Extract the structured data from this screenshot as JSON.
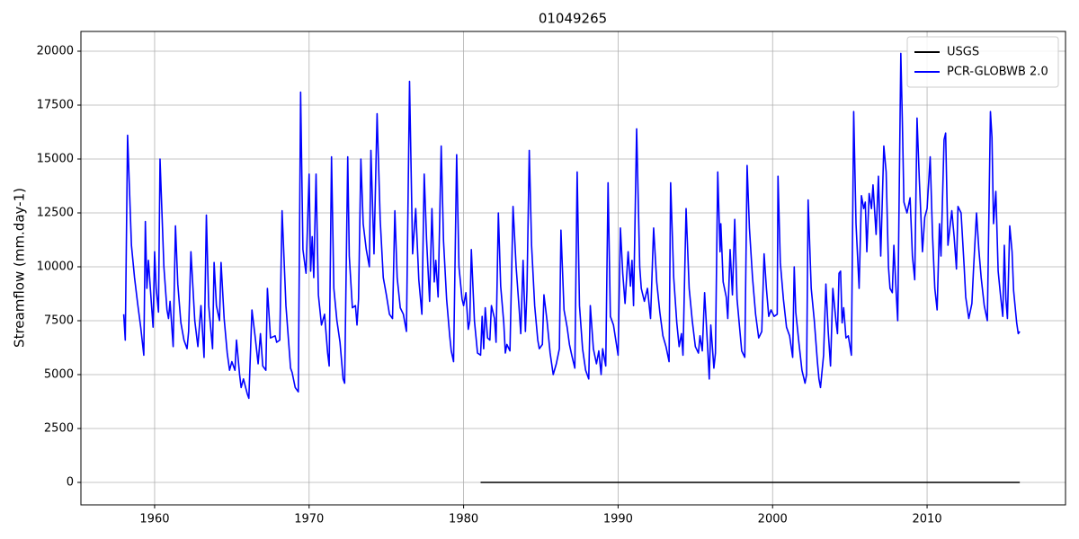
{
  "chart_data": {
    "type": "line",
    "title": "01049265",
    "y_label": "Streamflow (mm.day-1)",
    "xlim": [
      1955.23,
      2018.96
    ],
    "ylim": [
      -1042,
      20917
    ],
    "xticks": [
      1960,
      1970,
      1980,
      1990,
      2000,
      2010
    ],
    "yticks": [
      0,
      2500,
      5000,
      7500,
      10000,
      12500,
      15000,
      17500,
      20000
    ],
    "grid": true,
    "legend": "upper-right",
    "series": [
      {
        "name": "USGS",
        "color": "#000000",
        "x": [
          1981.1,
          2016.0
        ],
        "values": [
          0,
          0
        ]
      },
      {
        "name": "PCR-GLOBWB 2.0",
        "color": "#0000ff",
        "x": [
          1958.0,
          1958.1,
          1958.25,
          1958.5,
          1958.7,
          1958.9,
          1959.1,
          1959.3,
          1959.4,
          1959.5,
          1959.6,
          1959.8,
          1959.9,
          1960.0,
          1960.1,
          1960.25,
          1960.35,
          1960.6,
          1960.8,
          1960.9,
          1961.0,
          1961.2,
          1961.35,
          1961.5,
          1961.7,
          1961.9,
          1962.1,
          1962.2,
          1962.35,
          1962.6,
          1962.8,
          1963.0,
          1963.2,
          1963.35,
          1963.5,
          1963.75,
          1963.85,
          1964.0,
          1964.2,
          1964.3,
          1964.5,
          1964.7,
          1964.85,
          1965.0,
          1965.2,
          1965.3,
          1965.5,
          1965.6,
          1965.75,
          1966.0,
          1966.1,
          1966.3,
          1966.5,
          1966.7,
          1966.85,
          1967.0,
          1967.2,
          1967.3,
          1967.5,
          1967.8,
          1967.9,
          1968.1,
          1968.25,
          1968.5,
          1968.8,
          1968.9,
          1969.1,
          1969.3,
          1969.45,
          1969.6,
          1969.8,
          1970.0,
          1970.1,
          1970.2,
          1970.3,
          1970.45,
          1970.6,
          1970.8,
          1971.0,
          1971.2,
          1971.3,
          1971.45,
          1971.6,
          1971.8,
          1972.0,
          1972.2,
          1972.3,
          1972.5,
          1972.6,
          1972.8,
          1973.0,
          1973.1,
          1973.2,
          1973.35,
          1973.5,
          1973.7,
          1973.9,
          1974.0,
          1974.2,
          1974.4,
          1974.6,
          1974.8,
          1975.0,
          1975.2,
          1975.4,
          1975.55,
          1975.7,
          1975.9,
          1976.1,
          1976.3,
          1976.5,
          1976.7,
          1976.9,
          1977.1,
          1977.3,
          1977.45,
          1977.6,
          1977.8,
          1977.95,
          1978.1,
          1978.2,
          1978.35,
          1978.55,
          1978.7,
          1978.9,
          1979.1,
          1979.2,
          1979.35,
          1979.55,
          1979.7,
          1979.9,
          1980.0,
          1980.15,
          1980.3,
          1980.4,
          1980.5,
          1980.7,
          1980.9,
          1981.1,
          1981.2,
          1981.3,
          1981.4,
          1981.55,
          1981.7,
          1981.8,
          1982.0,
          1982.1,
          1982.25,
          1982.4,
          1982.6,
          1982.7,
          1982.8,
          1983.0,
          1983.2,
          1983.4,
          1983.6,
          1983.7,
          1983.85,
          1984.0,
          1984.1,
          1984.25,
          1984.4,
          1984.6,
          1984.8,
          1984.9,
          1985.1,
          1985.2,
          1985.4,
          1985.6,
          1985.8,
          1986.0,
          1986.2,
          1986.3,
          1986.5,
          1986.7,
          1986.85,
          1987.0,
          1987.2,
          1987.35,
          1987.5,
          1987.7,
          1987.9,
          1988.1,
          1988.2,
          1988.4,
          1988.6,
          1988.75,
          1988.9,
          1989.0,
          1989.2,
          1989.35,
          1989.5,
          1989.7,
          1989.85,
          1990.0,
          1990.15,
          1990.3,
          1990.45,
          1990.65,
          1990.8,
          1990.9,
          1991.0,
          1991.2,
          1991.4,
          1991.5,
          1991.7,
          1991.9,
          1992.1,
          1992.3,
          1992.5,
          1992.7,
          1992.9,
          1993.1,
          1993.3,
          1993.4,
          1993.6,
          1993.8,
          1993.95,
          1994.1,
          1994.2,
          1994.4,
          1994.6,
          1994.8,
          1995.0,
          1995.2,
          1995.3,
          1995.45,
          1995.6,
          1995.8,
          1995.9,
          1996.0,
          1996.2,
          1996.3,
          1996.45,
          1996.6,
          1996.65,
          1996.8,
          1997.0,
          1997.1,
          1997.25,
          1997.4,
          1997.55,
          1997.7,
          1997.9,
          1998.0,
          1998.2,
          1998.35,
          1998.5,
          1998.7,
          1998.9,
          1999.1,
          1999.3,
          1999.45,
          1999.6,
          1999.75,
          1999.9,
          2000.1,
          2000.3,
          2000.35,
          2000.5,
          2000.7,
          2000.9,
          2001.1,
          2001.3,
          2001.4,
          2001.5,
          2001.7,
          2001.9,
          2002.1,
          2002.2,
          2002.3,
          2002.5,
          2002.7,
          2002.9,
          2003.0,
          2003.1,
          2003.3,
          2003.45,
          2003.6,
          2003.75,
          2003.9,
          2004.1,
          2004.2,
          2004.3,
          2004.4,
          2004.5,
          2004.6,
          2004.75,
          2004.9,
          2005.1,
          2005.25,
          2005.4,
          2005.6,
          2005.75,
          2005.9,
          2006.0,
          2006.1,
          2006.25,
          2006.4,
          2006.5,
          2006.7,
          2006.85,
          2007.0,
          2007.2,
          2007.35,
          2007.5,
          2007.6,
          2007.75,
          2007.85,
          2008.0,
          2008.1,
          2008.3,
          2008.4,
          2008.5,
          2008.7,
          2008.9,
          2009.05,
          2009.2,
          2009.35,
          2009.5,
          2009.7,
          2009.85,
          2010.0,
          2010.2,
          2010.35,
          2010.5,
          2010.65,
          2010.8,
          2010.9,
          2011.1,
          2011.2,
          2011.35,
          2011.6,
          2011.75,
          2011.9,
          2012.0,
          2012.2,
          2012.4,
          2012.5,
          2012.7,
          2012.9,
          2013.0,
          2013.2,
          2013.35,
          2013.5,
          2013.7,
          2013.9,
          2014.1,
          2014.2,
          2014.3,
          2014.45,
          2014.6,
          2014.75,
          2014.9,
          2015.0,
          2015.1,
          2015.2,
          2015.35,
          2015.5,
          2015.6,
          2015.8,
          2015.9,
          2016.0
        ],
        "values": [
          7800,
          6600,
          16100,
          11000,
          9500,
          8300,
          7200,
          5900,
          12100,
          9000,
          10300,
          8200,
          7200,
          10700,
          9000,
          7900,
          15000,
          10000,
          8000,
          7600,
          8400,
          6300,
          11900,
          9200,
          7400,
          6600,
          6200,
          7000,
          10700,
          7500,
          6300,
          8200,
          5800,
          12400,
          8200,
          6200,
          10200,
          8200,
          7500,
          10200,
          7600,
          6000,
          5200,
          5600,
          5200,
          6600,
          5000,
          4400,
          4800,
          4100,
          3900,
          8000,
          6800,
          5500,
          6900,
          5400,
          5200,
          9000,
          6700,
          6800,
          6500,
          6600,
          12600,
          8200,
          5300,
          5100,
          4400,
          4200,
          18100,
          10800,
          9700,
          14300,
          9800,
          11400,
          9500,
          14300,
          8700,
          7300,
          7800,
          6000,
          5400,
          15100,
          9000,
          7500,
          6500,
          4800,
          4600,
          15100,
          10500,
          8100,
          8200,
          7300,
          8500,
          15000,
          12000,
          10800,
          10000,
          15400,
          10600,
          17100,
          12200,
          9500,
          8700,
          7800,
          7600,
          12600,
          9500,
          8100,
          7800,
          7000,
          18600,
          10600,
          12700,
          9400,
          7800,
          14300,
          11300,
          8400,
          12700,
          9300,
          10300,
          8600,
          15600,
          11200,
          8500,
          6800,
          6100,
          5600,
          15200,
          10000,
          8500,
          8200,
          8800,
          7100,
          7500,
          10800,
          7500,
          6000,
          5900,
          7700,
          6200,
          8100,
          6700,
          6600,
          8200,
          7600,
          6500,
          12500,
          9100,
          7400,
          6000,
          6400,
          6100,
          12800,
          10000,
          8000,
          6900,
          10300,
          7000,
          8900,
          15400,
          11000,
          8200,
          6600,
          6200,
          6400,
          8700,
          7500,
          6000,
          5000,
          5500,
          6200,
          11700,
          8000,
          7200,
          6400,
          5900,
          5300,
          14400,
          8200,
          6200,
          5200,
          4800,
          8200,
          6200,
          5500,
          6100,
          5000,
          6200,
          5400,
          13900,
          7700,
          7300,
          6600,
          5900,
          11800,
          9700,
          8300,
          10700,
          9100,
          10300,
          8200,
          16400,
          10000,
          9000,
          8400,
          9000,
          7600,
          11800,
          9300,
          7900,
          6800,
          6300,
          5600,
          13900,
          9500,
          7400,
          6300,
          6900,
          5900,
          12700,
          9000,
          7500,
          6300,
          6000,
          6800,
          6100,
          8800,
          6200,
          4800,
          7300,
          5300,
          6000,
          14400,
          10700,
          12000,
          9300,
          8600,
          7600,
          10800,
          8700,
          12200,
          8500,
          6900,
          6100,
          5800,
          14700,
          11800,
          9500,
          7800,
          6700,
          7000,
          10600,
          9000,
          7700,
          8000,
          7700,
          7800,
          14200,
          10200,
          8500,
          7200,
          6800,
          5800,
          10000,
          7900,
          6500,
          5200,
          4600,
          5000,
          13100,
          9000,
          7500,
          5600,
          4800,
          4400,
          5900,
          9200,
          7000,
          5400,
          9000,
          7500,
          6900,
          9700,
          9800,
          7400,
          8100,
          6700,
          6800,
          5900,
          17200,
          12000,
          9000,
          13300,
          12700,
          13000,
          10700,
          13400,
          12700,
          13800,
          11500,
          14200,
          10500,
          15600,
          14400,
          10000,
          9000,
          8800,
          11000,
          8800,
          7500,
          19900,
          16700,
          13000,
          12500,
          13200,
          10500,
          9400,
          16900,
          14000,
          10700,
          12300,
          12700,
          15100,
          11500,
          9000,
          8000,
          12000,
          10500,
          15900,
          16200,
          11000,
          12600,
          11400,
          9900,
          12800,
          12500,
          10000,
          8600,
          7600,
          8300,
          9800,
          12500,
          10800,
          9500,
          8200,
          7500,
          17200,
          16000,
          12000,
          13500,
          9800,
          8700,
          7700,
          11000,
          8500,
          7600,
          11900,
          10700,
          8900,
          7400,
          6900,
          7000
        ]
      }
    ]
  }
}
